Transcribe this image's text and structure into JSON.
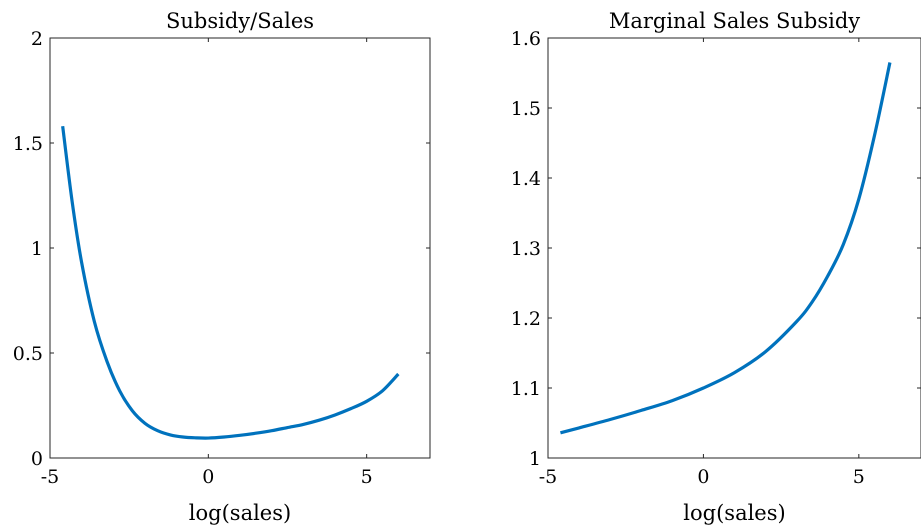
{
  "chart_data": [
    {
      "type": "line",
      "title": "Subsidy/Sales",
      "xlabel": "log(sales)",
      "ylabel": "",
      "xlim": [
        -5,
        7
      ],
      "ylim": [
        0,
        2
      ],
      "xticks": [
        -5,
        0,
        5
      ],
      "xtick_labels": [
        "-5",
        "0",
        "5"
      ],
      "yticks": [
        0,
        0.5,
        1,
        1.5,
        2
      ],
      "ytick_labels": [
        "0",
        "0.5",
        "1",
        "1.5",
        "2"
      ],
      "grid": false,
      "line_color": "#0072BD",
      "series": [
        {
          "x": [
            -4.6,
            -4.3,
            -4.0,
            -3.6,
            -3.2,
            -2.8,
            -2.4,
            -2.0,
            -1.6,
            -1.2,
            -0.8,
            -0.4,
            0.0,
            0.5,
            1.0,
            1.5,
            2.0,
            2.5,
            3.0,
            3.5,
            4.0,
            4.5,
            5.0,
            5.5,
            6.0
          ],
          "y": [
            1.58,
            1.22,
            0.93,
            0.65,
            0.46,
            0.32,
            0.225,
            0.165,
            0.13,
            0.11,
            0.1,
            0.096,
            0.095,
            0.1,
            0.108,
            0.118,
            0.13,
            0.145,
            0.16,
            0.18,
            0.205,
            0.235,
            0.27,
            0.32,
            0.4
          ]
        }
      ]
    },
    {
      "type": "line",
      "title": "Marginal Sales Subsidy",
      "xlabel": "log(sales)",
      "ylabel": "",
      "xlim": [
        -5,
        7
      ],
      "ylim": [
        1,
        1.6
      ],
      "xticks": [
        -5,
        0,
        5
      ],
      "xtick_labels": [
        "-5",
        "0",
        "5"
      ],
      "yticks": [
        1,
        1.1,
        1.2,
        1.3,
        1.4,
        1.5,
        1.6
      ],
      "ytick_labels": [
        "1",
        "1.1",
        "1.2",
        "1.3",
        "1.4",
        "1.5",
        "1.6"
      ],
      "grid": false,
      "line_color": "#0072BD",
      "series": [
        {
          "x": [
            -4.6,
            -4.0,
            -3.0,
            -2.0,
            -1.0,
            0.0,
            1.0,
            2.0,
            3.0,
            3.5,
            4.0,
            4.5,
            5.0,
            5.5,
            6.0
          ],
          "y": [
            1.036,
            1.043,
            1.055,
            1.068,
            1.082,
            1.1,
            1.122,
            1.152,
            1.195,
            1.223,
            1.26,
            1.305,
            1.37,
            1.46,
            1.565
          ]
        }
      ]
    }
  ]
}
